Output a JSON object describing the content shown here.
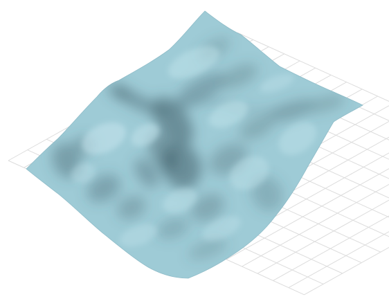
{
  "scene": {
    "type": "3d-terrain-surface",
    "surface_color": "#9ecbd6",
    "shadow_color": "#3f5c66",
    "highlight_color": "#c6e6ee",
    "ground_grid_color": "#dcdcdc",
    "background_color": "#ffffff",
    "ground_grid": true,
    "view": "isometric-oblique"
  }
}
